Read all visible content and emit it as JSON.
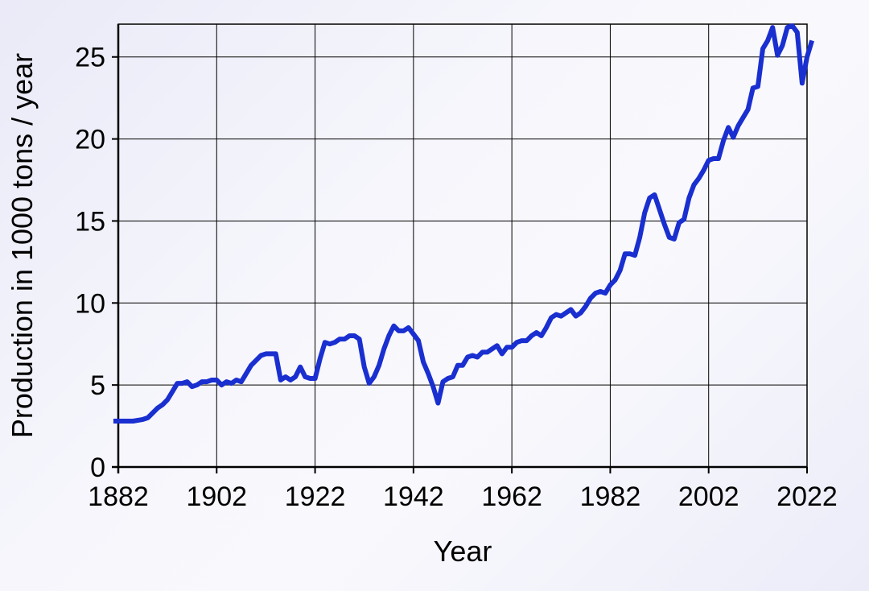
{
  "chart_data": {
    "type": "line",
    "xlabel": "Year",
    "ylabel": "Production in 1000 tons / year",
    "xlim": [
      1882,
      2022
    ],
    "ylim": [
      0,
      27
    ],
    "x_ticks": [
      1882,
      1902,
      1922,
      1942,
      1962,
      1982,
      2002,
      2022
    ],
    "y_ticks": [
      0,
      5,
      10,
      15,
      20,
      25
    ],
    "grid": true,
    "legend": "none",
    "colors": {
      "line": "#1a2fd0",
      "grid": "#000000",
      "background": "#f5f5fc"
    },
    "series": [
      {
        "points": [
          [
            1881,
            2.8
          ],
          [
            1883,
            2.8
          ],
          [
            1885,
            2.8
          ],
          [
            1887,
            2.9
          ],
          [
            1888,
            3.0
          ],
          [
            1890,
            3.6
          ],
          [
            1891,
            3.8
          ],
          [
            1892,
            4.1
          ],
          [
            1893,
            4.6
          ],
          [
            1894,
            5.1
          ],
          [
            1895,
            5.1
          ],
          [
            1896,
            5.2
          ],
          [
            1897,
            4.9
          ],
          [
            1898,
            5.0
          ],
          [
            1899,
            5.2
          ],
          [
            1900,
            5.2
          ],
          [
            1901,
            5.3
          ],
          [
            1902,
            5.3
          ],
          [
            1903,
            5.0
          ],
          [
            1904,
            5.2
          ],
          [
            1905,
            5.1
          ],
          [
            1906,
            5.3
          ],
          [
            1907,
            5.2
          ],
          [
            1908,
            5.7
          ],
          [
            1909,
            6.2
          ],
          [
            1910,
            6.5
          ],
          [
            1911,
            6.8
          ],
          [
            1912,
            6.9
          ],
          [
            1913,
            6.9
          ],
          [
            1914,
            6.9
          ],
          [
            1915,
            5.3
          ],
          [
            1916,
            5.5
          ],
          [
            1917,
            5.3
          ],
          [
            1918,
            5.5
          ],
          [
            1919,
            6.1
          ],
          [
            1920,
            5.5
          ],
          [
            1921,
            5.4
          ],
          [
            1922,
            5.4
          ],
          [
            1923,
            6.6
          ],
          [
            1924,
            7.6
          ],
          [
            1925,
            7.5
          ],
          [
            1926,
            7.6
          ],
          [
            1927,
            7.8
          ],
          [
            1928,
            7.8
          ],
          [
            1929,
            8.0
          ],
          [
            1930,
            8.0
          ],
          [
            1931,
            7.8
          ],
          [
            1932,
            6.1
          ],
          [
            1933,
            5.1
          ],
          [
            1934,
            5.5
          ],
          [
            1935,
            6.2
          ],
          [
            1936,
            7.2
          ],
          [
            1937,
            8.0
          ],
          [
            1938,
            8.6
          ],
          [
            1939,
            8.3
          ],
          [
            1940,
            8.3
          ],
          [
            1941,
            8.5
          ],
          [
            1942,
            8.1
          ],
          [
            1943,
            7.7
          ],
          [
            1944,
            6.4
          ],
          [
            1945,
            5.7
          ],
          [
            1946,
            4.9
          ],
          [
            1947,
            3.9
          ],
          [
            1948,
            5.2
          ],
          [
            1949,
            5.4
          ],
          [
            1950,
            5.5
          ],
          [
            1951,
            6.2
          ],
          [
            1952,
            6.2
          ],
          [
            1953,
            6.7
          ],
          [
            1954,
            6.8
          ],
          [
            1955,
            6.7
          ],
          [
            1956,
            7.0
          ],
          [
            1957,
            7.0
          ],
          [
            1958,
            7.2
          ],
          [
            1959,
            7.4
          ],
          [
            1960,
            6.9
          ],
          [
            1961,
            7.3
          ],
          [
            1962,
            7.3
          ],
          [
            1963,
            7.6
          ],
          [
            1964,
            7.7
          ],
          [
            1965,
            7.7
          ],
          [
            1966,
            8.0
          ],
          [
            1967,
            8.2
          ],
          [
            1968,
            8.0
          ],
          [
            1969,
            8.5
          ],
          [
            1970,
            9.1
          ],
          [
            1971,
            9.3
          ],
          [
            1972,
            9.2
          ],
          [
            1973,
            9.4
          ],
          [
            1974,
            9.6
          ],
          [
            1975,
            9.2
          ],
          [
            1976,
            9.4
          ],
          [
            1977,
            9.8
          ],
          [
            1978,
            10.3
          ],
          [
            1979,
            10.6
          ],
          [
            1980,
            10.7
          ],
          [
            1981,
            10.6
          ],
          [
            1982,
            11.1
          ],
          [
            1983,
            11.4
          ],
          [
            1984,
            12.0
          ],
          [
            1985,
            13.0
          ],
          [
            1986,
            13.0
          ],
          [
            1987,
            12.9
          ],
          [
            1988,
            14.0
          ],
          [
            1989,
            15.5
          ],
          [
            1990,
            16.4
          ],
          [
            1991,
            16.6
          ],
          [
            1992,
            15.7
          ],
          [
            1993,
            14.8
          ],
          [
            1994,
            14.0
          ],
          [
            1995,
            13.9
          ],
          [
            1996,
            14.9
          ],
          [
            1997,
            15.1
          ],
          [
            1998,
            16.4
          ],
          [
            1999,
            17.2
          ],
          [
            2000,
            17.6
          ],
          [
            2001,
            18.1
          ],
          [
            2002,
            18.7
          ],
          [
            2003,
            18.8
          ],
          [
            2004,
            18.8
          ],
          [
            2005,
            19.9
          ],
          [
            2006,
            20.7
          ],
          [
            2007,
            20.1
          ],
          [
            2008,
            20.8
          ],
          [
            2009,
            21.3
          ],
          [
            2010,
            21.8
          ],
          [
            2011,
            23.1
          ],
          [
            2012,
            23.2
          ],
          [
            2013,
            25.5
          ],
          [
            2014,
            26.0
          ],
          [
            2015,
            26.8
          ],
          [
            2016,
            25.1
          ],
          [
            2017,
            25.7
          ],
          [
            2018,
            26.8
          ],
          [
            2019,
            26.9
          ],
          [
            2020,
            26.5
          ],
          [
            2021,
            23.4
          ],
          [
            2022,
            25.0
          ],
          [
            2023,
            26.0
          ]
        ]
      }
    ]
  }
}
